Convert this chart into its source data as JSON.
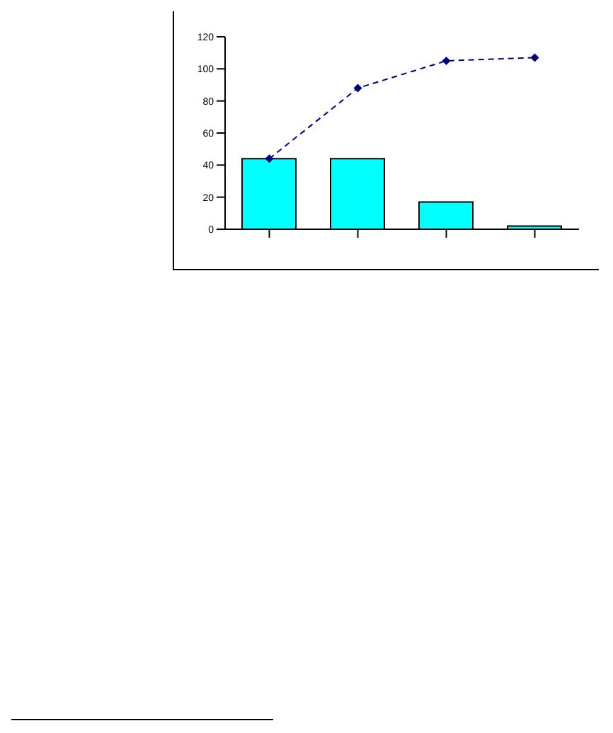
{
  "chart_data": {
    "type": "bar",
    "categories": [
      null,
      null,
      null,
      null
    ],
    "series": [
      {
        "color": "#00ffff",
        "values": [
          44,
          44,
          17,
          2
        ]
      },
      {
        "type": "line",
        "color": "#000080",
        "values": [
          44,
          88,
          105,
          107
        ],
        "marker": "diamond",
        "line_style": "dashed"
      }
    ],
    "ylim": [
      0,
      120
    ],
    "yticks": [
      0,
      20,
      40,
      60,
      80,
      100,
      120
    ],
    "grid": false,
    "legend": false
  }
}
